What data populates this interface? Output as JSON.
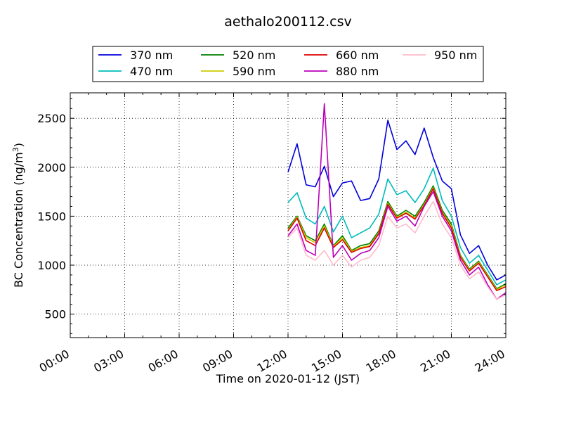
{
  "chart_data": {
    "type": "line",
    "title": "aethalo200112.csv",
    "xlabel": "Time on 2020-01-12 (JST)",
    "ylabel": {
      "text": "BC Concentration (ng/m",
      "superscript": "3",
      "suffix": ")"
    },
    "xlim": [
      0,
      24
    ],
    "ylim": [
      260,
      2760
    ],
    "xticks": [
      0,
      3,
      6,
      9,
      12,
      15,
      18,
      21,
      24
    ],
    "xtick_labels": [
      "00:00",
      "03:00",
      "06:00",
      "09:00",
      "12:00",
      "15:00",
      "18:00",
      "21:00",
      "24:00"
    ],
    "yticks": [
      500,
      1000,
      1500,
      2000,
      2500
    ],
    "ytick_labels": [
      "500",
      "1000",
      "1500",
      "2000",
      "2500"
    ],
    "grid": true,
    "legend_position": "top-center",
    "x": [
      12.0,
      12.5,
      13.0,
      13.5,
      14.0,
      14.5,
      15.0,
      15.5,
      16.0,
      16.5,
      17.0,
      17.5,
      18.0,
      18.5,
      19.0,
      19.5,
      20.0,
      20.5,
      21.0,
      21.5,
      22.0,
      22.5,
      23.0,
      23.5,
      24.0
    ],
    "series": [
      {
        "name": "370 nm",
        "color": "#0000dd",
        "values": [
          1950,
          2240,
          1820,
          1800,
          2010,
          1700,
          1840,
          1860,
          1660,
          1680,
          1880,
          2480,
          2180,
          2270,
          2130,
          2400,
          2100,
          1860,
          1780,
          1310,
          1120,
          1200,
          1000,
          850,
          900
        ]
      },
      {
        "name": "470 nm",
        "color": "#00bbbb",
        "values": [
          1640,
          1740,
          1480,
          1420,
          1600,
          1340,
          1500,
          1280,
          1330,
          1380,
          1520,
          1880,
          1720,
          1760,
          1640,
          1780,
          1990,
          1660,
          1500,
          1180,
          1020,
          1100,
          950,
          800,
          850
        ]
      },
      {
        "name": "520 nm",
        "color": "#008000",
        "values": [
          1380,
          1500,
          1300,
          1250,
          1420,
          1200,
          1300,
          1150,
          1200,
          1220,
          1350,
          1650,
          1500,
          1560,
          1500,
          1640,
          1810,
          1560,
          1420,
          1100,
          960,
          1040,
          900,
          760,
          810
        ]
      },
      {
        "name": "590 nm",
        "color": "#cccc00",
        "values": [
          1360,
          1490,
          1280,
          1230,
          1400,
          1190,
          1280,
          1140,
          1180,
          1200,
          1330,
          1630,
          1490,
          1540,
          1480,
          1620,
          1790,
          1540,
          1400,
          1090,
          950,
          1030,
          890,
          750,
          800
        ]
      },
      {
        "name": "660 nm",
        "color": "#dd0000",
        "values": [
          1350,
          1480,
          1250,
          1200,
          1380,
          1180,
          1260,
          1130,
          1170,
          1190,
          1320,
          1620,
          1480,
          1530,
          1470,
          1610,
          1780,
          1530,
          1380,
          1080,
          940,
          1020,
          880,
          740,
          780
        ]
      },
      {
        "name": "880 nm",
        "color": "#bb00bb",
        "values": [
          1300,
          1420,
          1150,
          1100,
          2650,
          1080,
          1200,
          1050,
          1120,
          1150,
          1280,
          1600,
          1450,
          1500,
          1400,
          1600,
          1750,
          1500,
          1350,
          1050,
          900,
          980,
          800,
          650,
          720
        ]
      },
      {
        "name": "950 nm",
        "color": "#ffbbcc",
        "values": [
          1280,
          1380,
          1100,
          1050,
          1150,
          1000,
          1100,
          980,
          1050,
          1080,
          1200,
          1500,
          1380,
          1420,
          1330,
          1500,
          1650,
          1420,
          1280,
          1000,
          860,
          930,
          780,
          650,
          700
        ]
      }
    ]
  }
}
